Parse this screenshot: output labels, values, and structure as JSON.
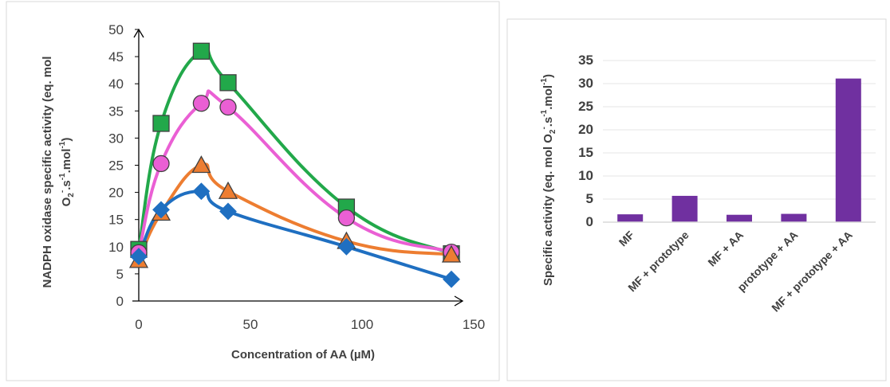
{
  "chart_data": [
    {
      "type": "line",
      "title": "",
      "xlabel": "Concentration of AA (µM)",
      "ylabel_parts": {
        "line1": "NADPH oxidase specific activity (eq. mol",
        "o": "O",
        "sub2": "2",
        "sup_minus": "-",
        "s": ".s",
        "sup_neg1a": "-1",
        "mol": ".mol",
        "sup_neg1b": "-1",
        "close": ")"
      },
      "xlim": [
        0,
        150
      ],
      "ylim": [
        0,
        50
      ],
      "x_ticks": [
        "0",
        "50",
        "100",
        "150"
      ],
      "y_ticks": [
        "0",
        "5",
        "10",
        "15",
        "20",
        "25",
        "30",
        "35",
        "40",
        "45",
        "50"
      ],
      "x_tick_values": [
        0,
        50,
        100,
        150
      ],
      "y_tick_values": [
        0,
        5,
        10,
        15,
        20,
        25,
        30,
        35,
        40,
        45,
        50
      ],
      "grid": false,
      "legend": "none",
      "series": [
        {
          "marker": "square",
          "color": "#22a84a",
          "marker_color": "#22a84a",
          "x": [
            0,
            10,
            28,
            40,
            93,
            140
          ],
          "y": [
            9.5,
            32.7,
            46.0,
            40.2,
            17.3,
            8.7
          ]
        },
        {
          "marker": "circle",
          "color": "#ea5fd4",
          "marker_color": "#ea5fd4",
          "x": [
            0,
            10,
            28,
            40,
            93,
            140
          ],
          "y": [
            8.9,
            25.3,
            36.4,
            35.7,
            15.3,
            9.0
          ]
        },
        {
          "marker": "triangle",
          "color": "#ed7d31",
          "marker_color": "#ed7d31",
          "x": [
            0,
            10,
            28,
            40,
            93,
            140
          ],
          "y": [
            7.5,
            16.2,
            25.0,
            20.2,
            11.0,
            8.5
          ]
        },
        {
          "marker": "diamond",
          "color": "#1f6fc1",
          "marker_color": "#1f6fc1",
          "x": [
            0,
            10,
            28,
            40,
            93,
            140
          ],
          "y": [
            8.2,
            16.8,
            20.2,
            16.5,
            10.0,
            4.0
          ]
        }
      ]
    },
    {
      "type": "bar",
      "title": "",
      "xlabel": "",
      "ylabel_parts": {
        "main": "Specific activity (eq. mol O",
        "sub2": "2",
        "sup_minus": "-",
        "s": ".s",
        "sup_neg1a": "-1",
        "mol": ".mol",
        "sup_neg1b": "-1",
        "close": ")"
      },
      "ylim": [
        0,
        35
      ],
      "y_ticks": [
        "0",
        "5",
        "10",
        "15",
        "20",
        "25",
        "30",
        "35"
      ],
      "y_tick_values": [
        0,
        5,
        10,
        15,
        20,
        25,
        30,
        35
      ],
      "categories": [
        "MF",
        "MF + prototype",
        "MF + AA",
        "prototype + AA",
        "MF + prototype + AA"
      ],
      "values": [
        1.7,
        5.7,
        1.6,
        1.8,
        31.1
      ],
      "bar_color": "#7030a0",
      "grid": true,
      "legend": "none"
    }
  ]
}
